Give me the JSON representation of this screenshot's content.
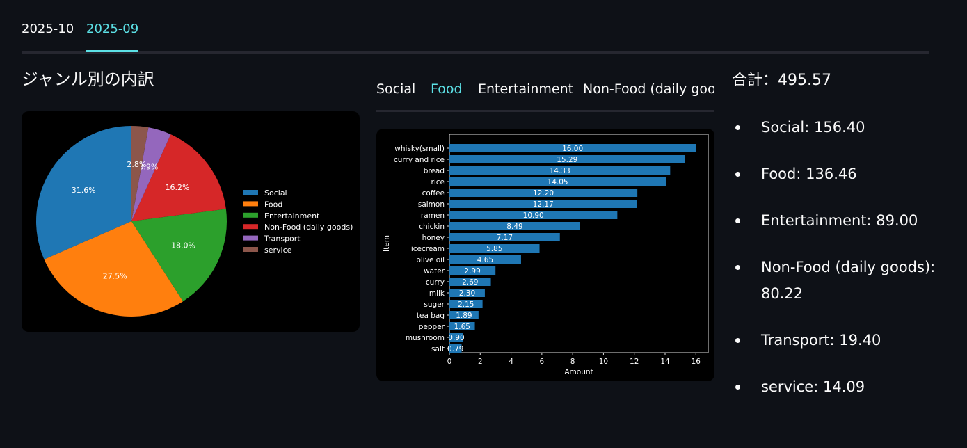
{
  "month_tabs": [
    {
      "label": "2025-10",
      "active": false
    },
    {
      "label": "2025-09",
      "active": true
    }
  ],
  "section_title": "ジャンル別の内訳",
  "category_tabs": [
    {
      "label": "Social",
      "active": false
    },
    {
      "label": "Food",
      "active": true
    },
    {
      "label": "Entertainment",
      "active": false
    },
    {
      "label": "Non-Food (daily good",
      "active": false
    }
  ],
  "total_label": "合計：495.57",
  "summary": [
    {
      "text": "Social: 156.40"
    },
    {
      "text": "Food: 136.46"
    },
    {
      "text": "Entertainment: 89.00"
    },
    {
      "text": "Non-Food (daily goods): 80.22"
    },
    {
      "text": "Transport: 19.40"
    },
    {
      "text": "service: 14.09"
    }
  ],
  "colors": {
    "accent": "#5ce1e6",
    "background": "#0e1117",
    "bar": "#1f77b4"
  },
  "chart_data": [
    {
      "type": "pie",
      "legend_position": "right",
      "labels": [
        "Social",
        "Food",
        "Entertainment",
        "Non-Food (daily goods)",
        "Transport",
        "service"
      ],
      "values": [
        156.4,
        136.46,
        89.0,
        80.22,
        19.4,
        14.09
      ],
      "percent_labels": [
        "31.6%",
        "27.5%",
        "18.0%",
        "16.2%",
        "3.9%",
        "2.8%"
      ],
      "colors": [
        "#1f77b4",
        "#ff7f0e",
        "#2ca02c",
        "#d62728",
        "#9467bd",
        "#8c564b"
      ]
    },
    {
      "type": "bar",
      "orientation": "horizontal",
      "xlabel": "Amount",
      "ylabel": "Item",
      "xlim": [
        0,
        16.8
      ],
      "xticks": [
        0,
        2,
        4,
        6,
        8,
        10,
        12,
        14,
        16
      ],
      "categories": [
        "whisky(small)",
        "curry and rice",
        "bread",
        "rice",
        "coffee",
        "salmon",
        "ramen",
        "chickin",
        "honey",
        "icecream",
        "olive oil",
        "water",
        "curry",
        "milk",
        "suger",
        "tea bag",
        "pepper",
        "mushroom",
        "salt"
      ],
      "values": [
        16.0,
        15.29,
        14.33,
        14.05,
        12.2,
        12.17,
        10.9,
        8.49,
        7.17,
        5.85,
        4.65,
        2.99,
        2.69,
        2.3,
        2.15,
        1.89,
        1.65,
        0.9,
        0.79
      ],
      "value_labels": [
        "16.00",
        "15.29",
        "14.33",
        "14.05",
        "12.20",
        "12.17",
        "10.90",
        "8.49",
        "7.17",
        "5.85",
        "4.65",
        "2.99",
        "2.69",
        "2.30",
        "2.15",
        "1.89",
        "1.65",
        "0.90",
        "0.79"
      ],
      "color": "#1f77b4"
    }
  ]
}
